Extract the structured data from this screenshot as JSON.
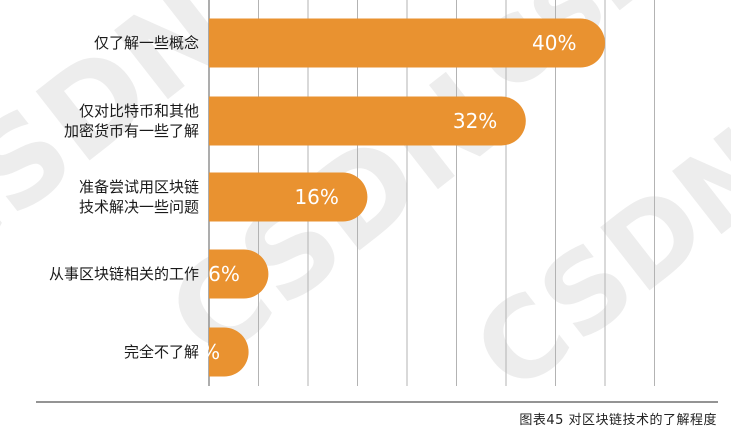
{
  "caption": "图表45 对区块链技术的了解程度",
  "colors": {
    "bar": "#E99230",
    "grid": "#B3B3B3",
    "axis": "#8A8A8A",
    "label_text": "#1A1A1A",
    "value_text": "#FFFFFF",
    "baseline": "#555555",
    "watermark": "#EDEDED"
  },
  "watermark": "CSDN",
  "chart_data": {
    "type": "bar",
    "orientation": "horizontal",
    "categories": [
      [
        "仅了解一些概念"
      ],
      [
        "仅对比特币和其他",
        "加密货币有一些了解"
      ],
      [
        "准备尝试用区块链",
        "技术解决一些问题"
      ],
      [
        "从事区块链相关的工作"
      ],
      [
        "完全不了解"
      ]
    ],
    "values": [
      40,
      32,
      16,
      6,
      4
    ],
    "value_labels": [
      "40%",
      "32%",
      "16%",
      "6%",
      "4%"
    ],
    "xlim": [
      0,
      46
    ],
    "grid": true,
    "title": "",
    "xlabel": "",
    "ylabel": ""
  }
}
